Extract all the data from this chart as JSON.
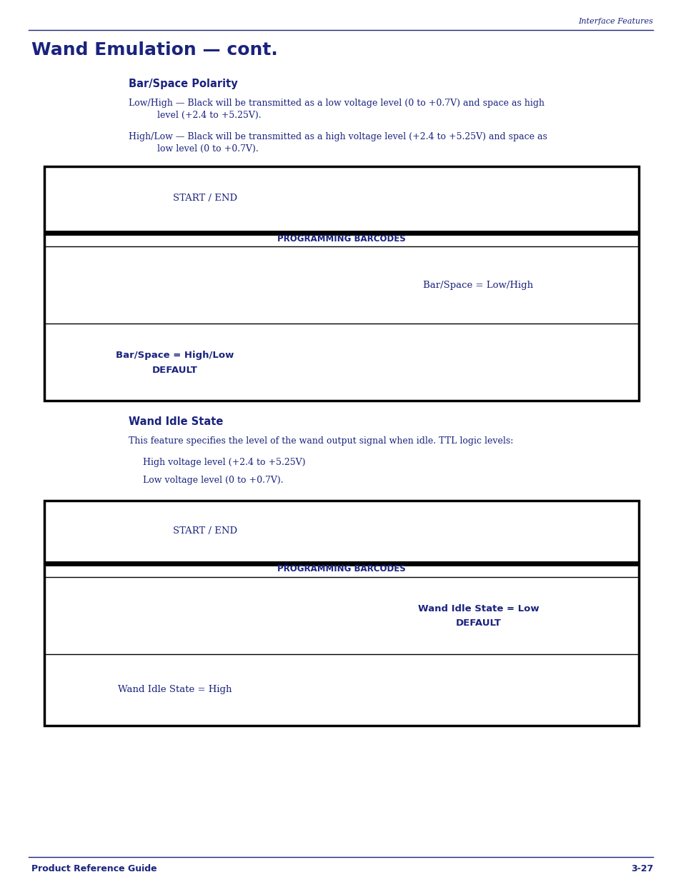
{
  "page_color": "#ffffff",
  "navy": "#1a237e",
  "black": "#000000",
  "header_text": "Interface Features",
  "title": "Wand Emulation — cont.",
  "section1_title": "Bar/Space Polarity",
  "s1p1_line1": "Low/High — Black will be transmitted as a low voltage level (0 to +0.7V) and space as high",
  "s1p1_line2": "level (+2.4 to +5.25V).",
  "s1p2_line1": "High/Low — Black will be transmitted as a high voltage level (+2.4 to +5.25V) and space as",
  "s1p2_line2": "low level (0 to +0.7V).",
  "t1_row1_left": "START / END",
  "t1_hdr": "PROGRAMMING BARCODES",
  "t1_row2_right": "Bar/Space = Low/High",
  "t1_row3_left1": "Bar/Space = High/Low",
  "t1_row3_left2": "DEFAULT",
  "section2_title": "Wand Idle State",
  "s2p1": "This feature specifies the level of the wand output signal when idle. TTL logic levels:",
  "s2p2": "High voltage level (+2.4 to +5.25V)",
  "s2p3": "Low voltage level (0 to +0.7V).",
  "t2_row1_left": "START / END",
  "t2_hdr": "PROGRAMMING BARCODES",
  "t2_row2_right1": "Wand Idle State = Low",
  "t2_row2_right2": "DEFAULT",
  "t2_row3_left": "Wand Idle State = High",
  "footer_left": "Product Reference Guide",
  "footer_right": "3-27",
  "fig_w": 9.54,
  "fig_h": 12.35,
  "dpi": 100
}
